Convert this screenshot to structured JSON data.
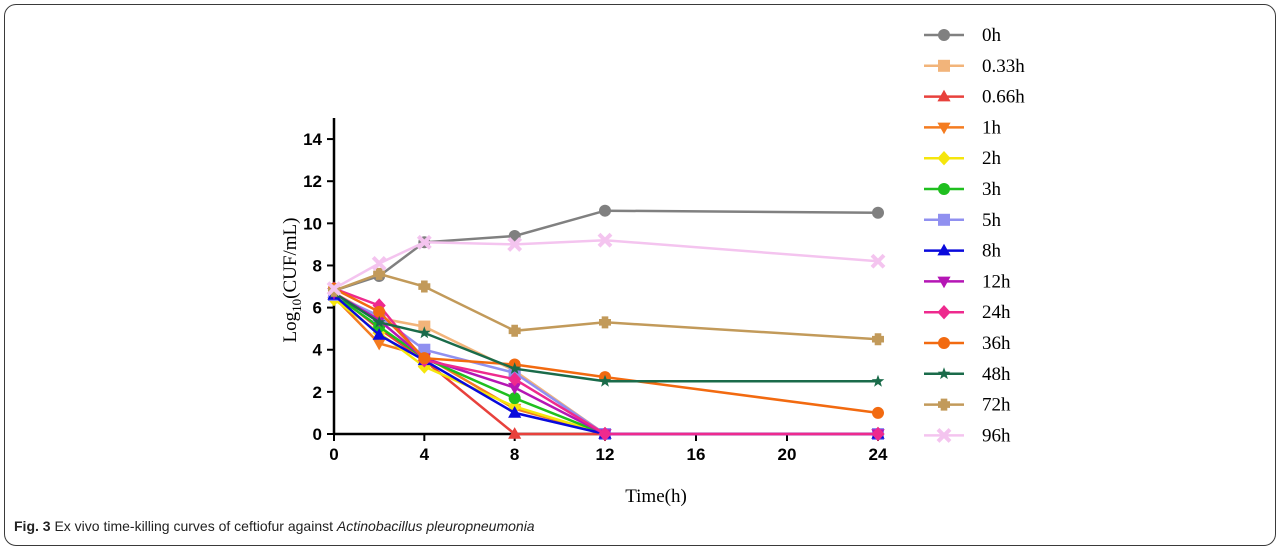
{
  "caption": {
    "label": "Fig. 3",
    "text": " Ex vivo time-killing curves of ceftiofur against ",
    "species": "Actinobacillus pleuropneumonia"
  },
  "chart_data": {
    "type": "line",
    "xlabel": "Time(h)",
    "ylabel_main": "Log",
    "ylabel_sub": "10",
    "ylabel_tail": "(CUF/mL)",
    "xlim": [
      0,
      24
    ],
    "ylim": [
      0,
      15
    ],
    "x_ticks": [
      0,
      4,
      8,
      12,
      16,
      20,
      24
    ],
    "y_ticks": [
      0,
      2,
      4,
      6,
      8,
      10,
      12,
      14
    ],
    "x_broken_after": 12,
    "x": [
      0,
      2,
      4,
      8,
      12,
      24
    ],
    "legend_position": "right",
    "series": [
      {
        "name": "0h",
        "color": "#808080",
        "marker": "circle",
        "values": [
          6.8,
          7.5,
          9.1,
          9.4,
          10.6,
          10.5
        ]
      },
      {
        "name": "0.33h",
        "color": "#f2b47a",
        "marker": "square",
        "values": [
          6.7,
          5.5,
          5.1,
          3.0,
          0.0,
          0.0
        ]
      },
      {
        "name": "0.66h",
        "color": "#e8413c",
        "marker": "triangle-up",
        "values": [
          6.7,
          5.0,
          3.5,
          0.0,
          0.0,
          0.0
        ]
      },
      {
        "name": "1h",
        "color": "#f47c20",
        "marker": "triangle-down",
        "values": [
          6.5,
          4.3,
          3.7,
          1.2,
          0.0,
          0.0
        ]
      },
      {
        "name": "2h",
        "color": "#f5e60c",
        "marker": "diamond",
        "values": [
          6.4,
          4.8,
          3.2,
          1.3,
          0.0,
          0.0
        ]
      },
      {
        "name": "3h",
        "color": "#1fbf1f",
        "marker": "circle",
        "values": [
          6.6,
          5.1,
          3.6,
          1.7,
          0.0,
          0.0
        ]
      },
      {
        "name": "5h",
        "color": "#9090f0",
        "marker": "square",
        "values": [
          6.6,
          5.6,
          4.0,
          2.9,
          0.0,
          0.0
        ]
      },
      {
        "name": "8h",
        "color": "#0a0adc",
        "marker": "triangle-up",
        "values": [
          6.6,
          4.7,
          3.5,
          1.0,
          0.0,
          0.0
        ]
      },
      {
        "name": "12h",
        "color": "#b516b5",
        "marker": "triangle-down",
        "values": [
          6.7,
          5.4,
          3.6,
          2.2,
          0.0,
          0.0
        ]
      },
      {
        "name": "24h",
        "color": "#ee2a8e",
        "marker": "diamond",
        "values": [
          6.9,
          6.1,
          3.5,
          2.6,
          0.0,
          0.0
        ]
      },
      {
        "name": "36h",
        "color": "#f26a10",
        "marker": "circle",
        "values": [
          6.9,
          5.8,
          3.6,
          3.3,
          2.7,
          1.0
        ]
      },
      {
        "name": "48h",
        "color": "#1a6b4a",
        "marker": "star",
        "values": [
          6.7,
          5.3,
          4.8,
          3.1,
          2.5,
          2.5
        ]
      },
      {
        "name": "72h",
        "color": "#c29a5a",
        "marker": "plus",
        "values": [
          6.8,
          7.6,
          7.0,
          4.9,
          5.3,
          4.5
        ]
      },
      {
        "name": "96h",
        "color": "#f4c4ef",
        "marker": "cross",
        "values": [
          6.9,
          8.1,
          9.1,
          9.0,
          9.2,
          8.2
        ]
      }
    ]
  }
}
